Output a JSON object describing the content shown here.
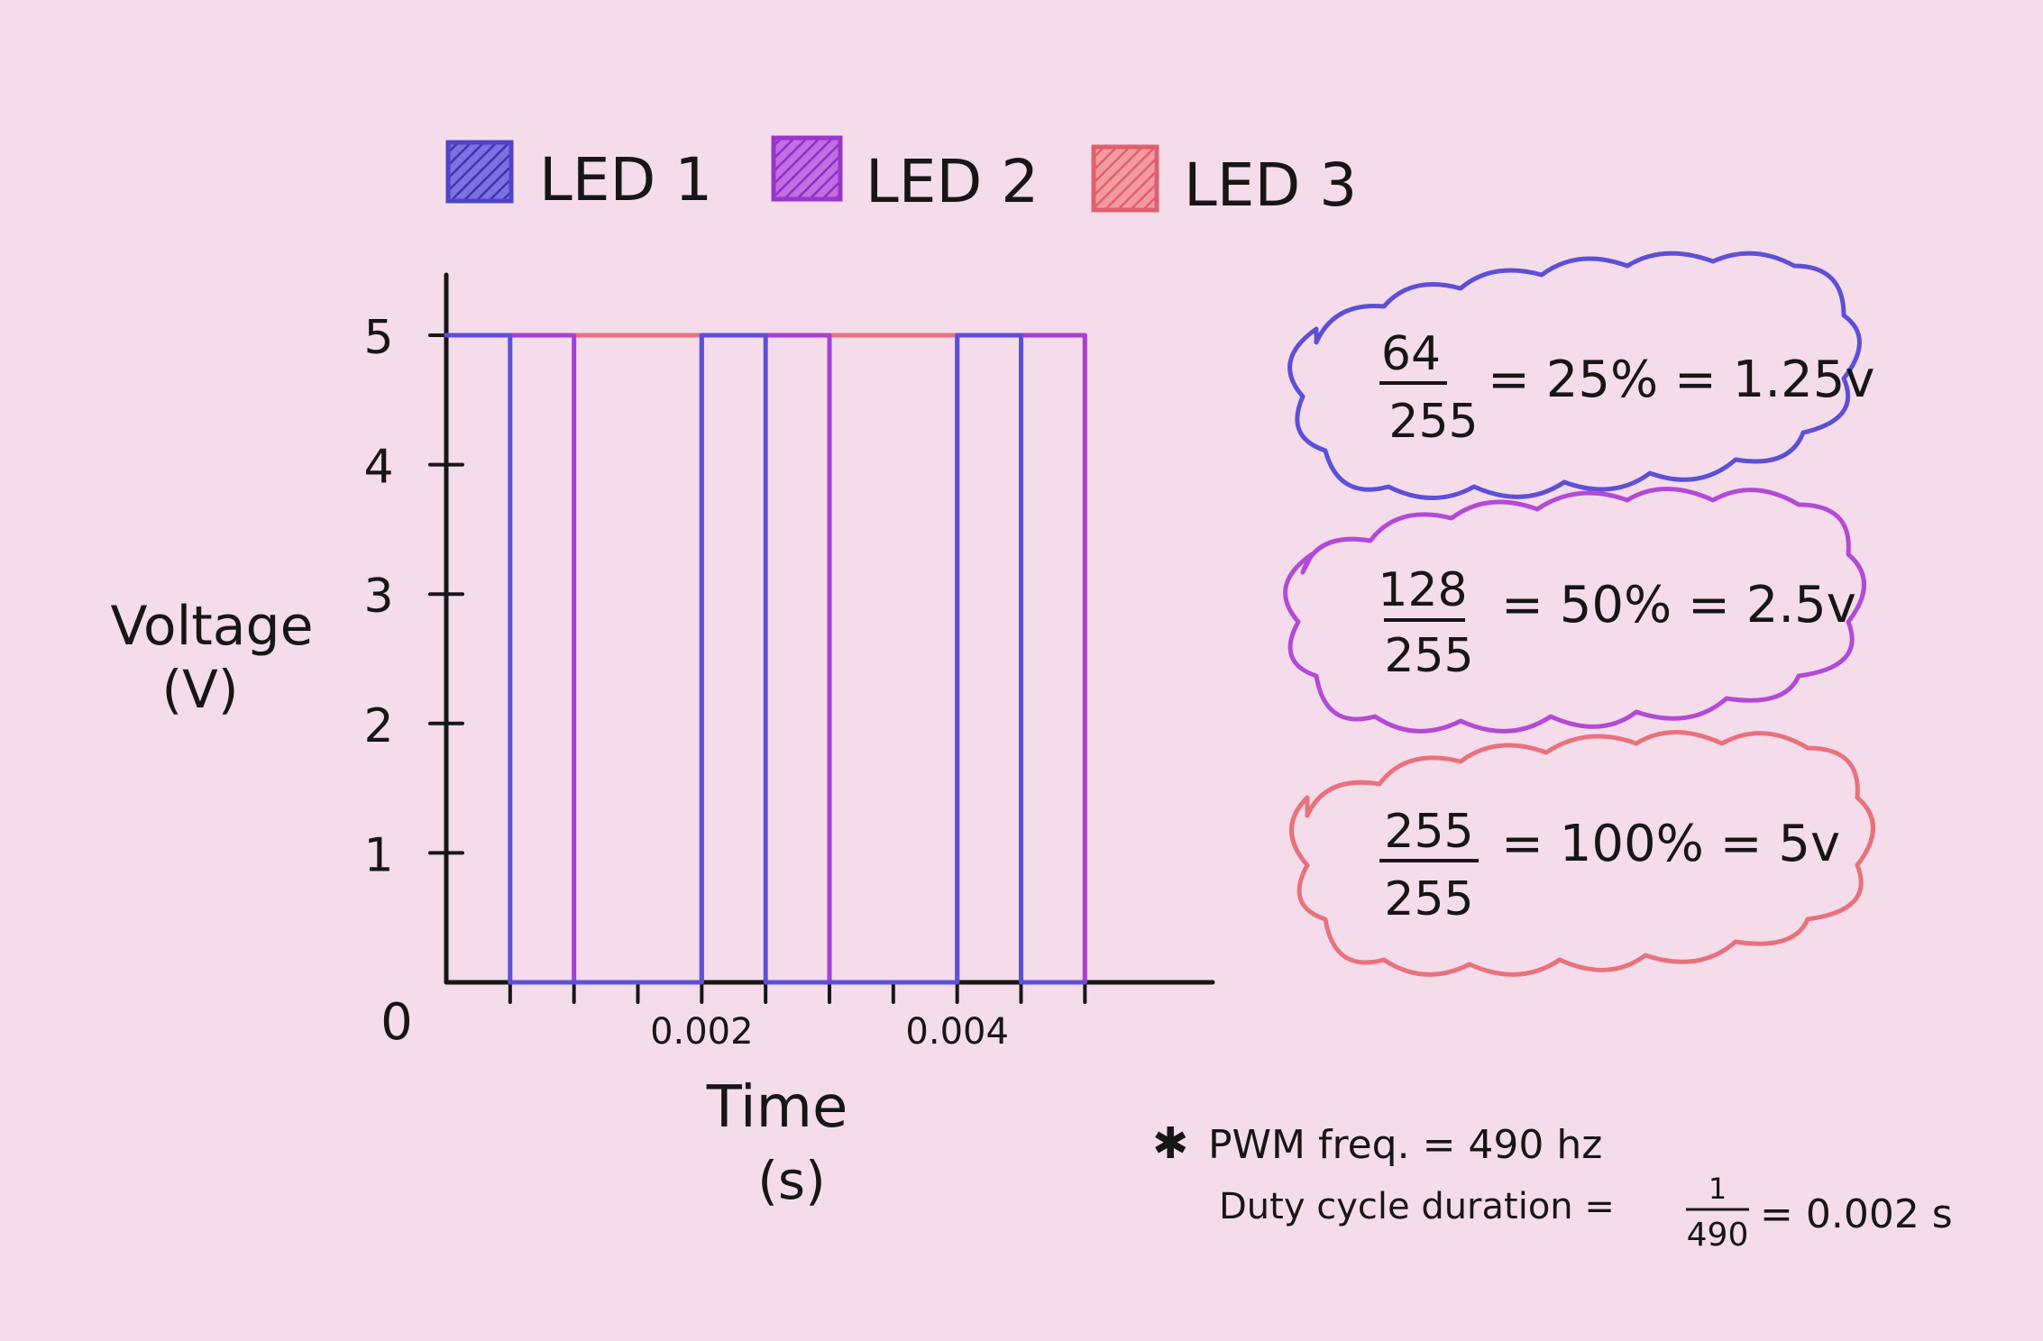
{
  "chart_data": {
    "type": "line",
    "title": "",
    "xlabel": "Time",
    "xunit": "(s)",
    "ylabel": "Voltage",
    "yunit": "(V)",
    "origin_label": "0",
    "xlim": [
      0,
      0.006
    ],
    "ylim": [
      0,
      5
    ],
    "x_ticks": [
      0.0005,
      0.001,
      0.0015,
      0.002,
      0.0025,
      0.003,
      0.0035,
      0.004,
      0.0045,
      0.005
    ],
    "x_tick_labels": [
      {
        "x": 0.002,
        "label": "0.002"
      },
      {
        "x": 0.004,
        "label": "0.004"
      }
    ],
    "y_ticks": [
      {
        "y": 1,
        "label": "1"
      },
      {
        "y": 2,
        "label": "2"
      },
      {
        "y": 3,
        "label": "3"
      },
      {
        "y": 4,
        "label": "4"
      },
      {
        "y": 5,
        "label": "5"
      }
    ],
    "legend_position": "top",
    "series": [
      {
        "name": "LED 1",
        "color": "#5b50d6",
        "x": [
          0,
          0.0005,
          0.0005,
          0.002,
          0.002,
          0.0025,
          0.0025,
          0.004,
          0.004,
          0.0045,
          0.0045,
          0.005
        ],
        "y": [
          5,
          5,
          0,
          0,
          5,
          5,
          0,
          0,
          5,
          5,
          0,
          0
        ]
      },
      {
        "name": "LED 2",
        "color": "#a73fd4",
        "x": [
          0,
          0.001,
          0.001,
          0.002,
          0.002,
          0.003,
          0.003,
          0.004,
          0.004,
          0.005,
          0.005
        ],
        "y": [
          5,
          5,
          0,
          0,
          5,
          5,
          0,
          0,
          5,
          5,
          0
        ]
      },
      {
        "name": "LED 3",
        "color": "#e8727c",
        "x": [
          0,
          0.005,
          0.005
        ],
        "y": [
          5,
          5,
          0
        ]
      }
    ]
  },
  "notes": [
    {
      "numerator": "64",
      "denominator": "255",
      "rest": "= 25% = 1.25v",
      "color": "#5b50d6"
    },
    {
      "numerator": "128",
      "denominator": "255",
      "rest": "= 50% = 2.5v",
      "color": "#b24ad6"
    },
    {
      "numerator": "255",
      "denominator": "255",
      "rest": "= 100% = 5v",
      "color": "#e8727c"
    }
  ],
  "footnote": {
    "star": "✱",
    "line1": "PWM freq. = 490 hz",
    "line2_prefix": "Duty cycle duration =",
    "frac_num": "1",
    "frac_den": "490",
    "line2_suffix": "= 0.002 s"
  }
}
